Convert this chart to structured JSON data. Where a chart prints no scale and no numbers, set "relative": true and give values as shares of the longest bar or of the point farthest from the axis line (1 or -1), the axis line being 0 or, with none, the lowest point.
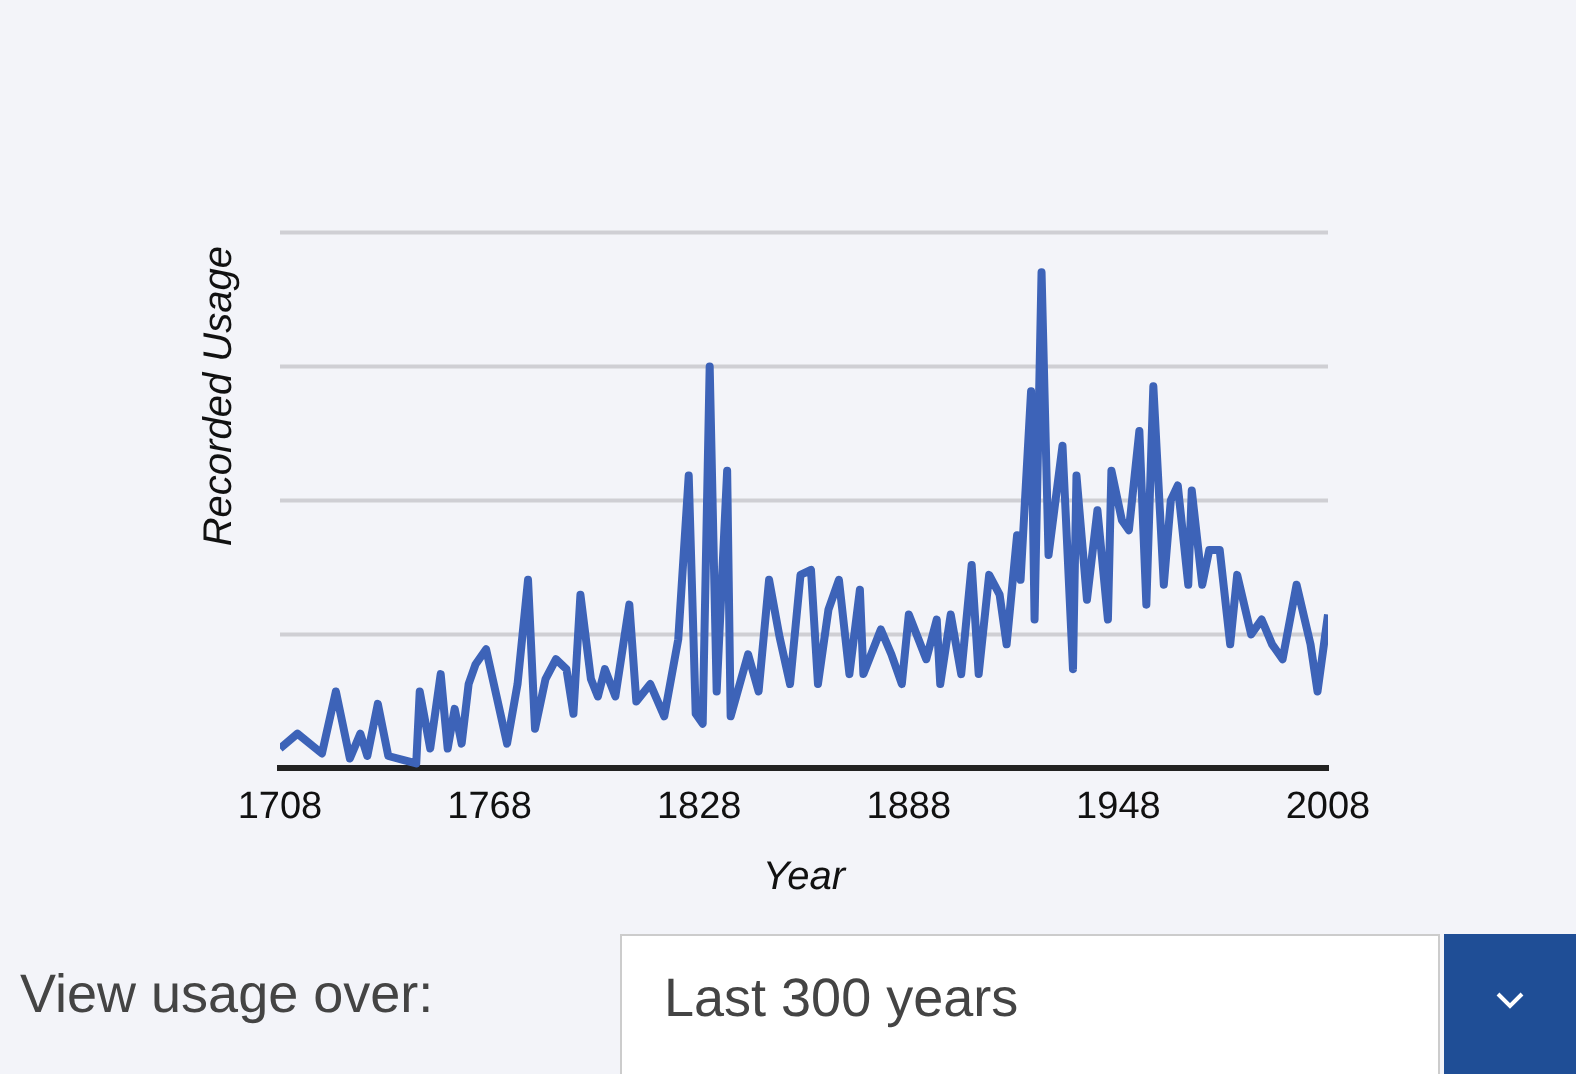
{
  "chart_data": {
    "type": "line",
    "xlabel": "Year",
    "ylabel": "Recorded Usage",
    "relative": true,
    "color": "#3d63b8",
    "ref_lines": [
      {
        "axis": "y",
        "value": 0.27,
        "color": "#cfcfd4"
      },
      {
        "axis": "y",
        "value": 0.54,
        "color": "#cfcfd4"
      },
      {
        "axis": "y",
        "value": 0.81,
        "color": "#cfcfd4"
      },
      {
        "axis": "y",
        "value": 1.08,
        "color": "#cfcfd4"
      }
    ],
    "xlim": [
      1708,
      2008
    ],
    "xticks": [
      1708,
      1768,
      1828,
      1888,
      1948,
      2008
    ],
    "x": [
      1708,
      1713,
      1720,
      1724,
      1728,
      1731,
      1733,
      1736,
      1739,
      1747,
      1748,
      1751,
      1754,
      1756,
      1758,
      1760,
      1762,
      1764,
      1767,
      1770,
      1773,
      1776,
      1779,
      1781,
      1784,
      1787,
      1790,
      1792,
      1794,
      1797,
      1799,
      1801,
      1804,
      1808,
      1810,
      1814,
      1818,
      1822,
      1825,
      1827,
      1829,
      1831,
      1833,
      1836,
      1837,
      1842,
      1845,
      1848,
      1851,
      1854,
      1857,
      1860,
      1862,
      1865,
      1868,
      1871,
      1874,
      1875,
      1880,
      1883,
      1886,
      1888,
      1893,
      1896,
      1897,
      1900,
      1903,
      1906,
      1908,
      1911,
      1914,
      1916,
      1919,
      1920,
      1923,
      1924,
      1926,
      1928,
      1932,
      1935,
      1936,
      1939,
      1942,
      1945,
      1946,
      1949,
      1951,
      1954,
      1956,
      1958,
      1961,
      1963,
      1965,
      1968,
      1969,
      1972,
      1974,
      1977,
      1980,
      1982,
      1986,
      1989,
      1992,
      1995,
      1999,
      2003,
      2005,
      2008
    ],
    "values": [
      0.04,
      0.07,
      0.03,
      0.155,
      0.02,
      0.07,
      0.025,
      0.13,
      0.025,
      0.01,
      0.155,
      0.04,
      0.19,
      0.04,
      0.12,
      0.05,
      0.17,
      0.21,
      0.24,
      0.145,
      0.05,
      0.17,
      0.38,
      0.08,
      0.18,
      0.22,
      0.2,
      0.11,
      0.35,
      0.18,
      0.145,
      0.2,
      0.145,
      0.33,
      0.135,
      0.17,
      0.105,
      0.26,
      0.59,
      0.11,
      0.09,
      0.81,
      0.155,
      0.6,
      0.105,
      0.23,
      0.155,
      0.38,
      0.265,
      0.17,
      0.39,
      0.4,
      0.17,
      0.32,
      0.38,
      0.19,
      0.36,
      0.19,
      0.28,
      0.23,
      0.17,
      0.31,
      0.22,
      0.3,
      0.17,
      0.31,
      0.19,
      0.41,
      0.19,
      0.39,
      0.35,
      0.25,
      0.47,
      0.38,
      0.76,
      0.3,
      1,
      0.43,
      0.65,
      0.2,
      0.59,
      0.34,
      0.52,
      0.3,
      0.6,
      0.5,
      0.48,
      0.68,
      0.33,
      0.77,
      0.37,
      0.54,
      0.57,
      0.37,
      0.56,
      0.37,
      0.44,
      0.44,
      0.25,
      0.39,
      0.27,
      0.3,
      0.25,
      0.22,
      0.37,
      0.25,
      0.155,
      0.31
    ],
    "annotations": [
      "View usage over:",
      "Last 300 years"
    ]
  }
}
